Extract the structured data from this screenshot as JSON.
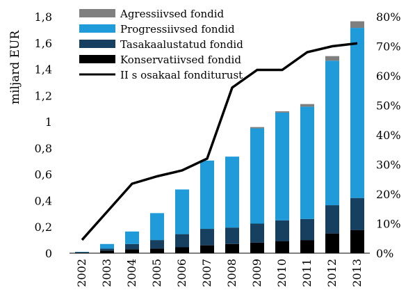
{
  "chart_data": {
    "type": "bar",
    "stacked": true,
    "categories": [
      "2002",
      "2003",
      "2004",
      "2005",
      "2006",
      "2007",
      "2008",
      "2009",
      "2010",
      "2011",
      "2012",
      "2013"
    ],
    "ylabel": "miljard EUR",
    "ylim": [
      0,
      1.8
    ],
    "y_ticks": [
      "0",
      "0,2",
      "0,4",
      "0,6",
      "0,8",
      "1",
      "1,2",
      "1,4",
      "1,6",
      "1,8"
    ],
    "y2lim": [
      0,
      0.8
    ],
    "y2_ticks": [
      "0%",
      "10%",
      "20%",
      "30%",
      "40%",
      "50%",
      "60%",
      "70%",
      "80%"
    ],
    "grid": false,
    "legend_position": "top-left",
    "series": [
      {
        "name": "Konservatiivsed fondid",
        "color": "#000000",
        "values": [
          0.005,
          0.02,
          0.03,
          0.035,
          0.045,
          0.06,
          0.07,
          0.08,
          0.09,
          0.1,
          0.15,
          0.175
        ]
      },
      {
        "name": "Tasakaalustatud fondid",
        "color": "#173f5f",
        "values": [
          0.003,
          0.015,
          0.04,
          0.065,
          0.1,
          0.125,
          0.125,
          0.145,
          0.16,
          0.16,
          0.215,
          0.245
        ]
      },
      {
        "name": "Progressiivsed fondid",
        "color": "#1f9bd9",
        "values": [
          0.002,
          0.035,
          0.095,
          0.205,
          0.34,
          0.52,
          0.54,
          0.725,
          0.82,
          0.855,
          1.1,
          1.295
        ]
      },
      {
        "name": "Agressiivsed fondid",
        "color": "#7f7f7f",
        "values": [
          0,
          0,
          0,
          0,
          0,
          0,
          0,
          0.01,
          0.01,
          0.02,
          0.035,
          0.05
        ]
      }
    ],
    "line_series": {
      "name": "II s osakaal fonditurust",
      "color": "#000000",
      "axis": "right",
      "values": [
        0.045,
        0.14,
        0.235,
        0.26,
        0.28,
        0.32,
        0.56,
        0.62,
        0.62,
        0.68,
        0.7,
        0.71
      ]
    }
  }
}
